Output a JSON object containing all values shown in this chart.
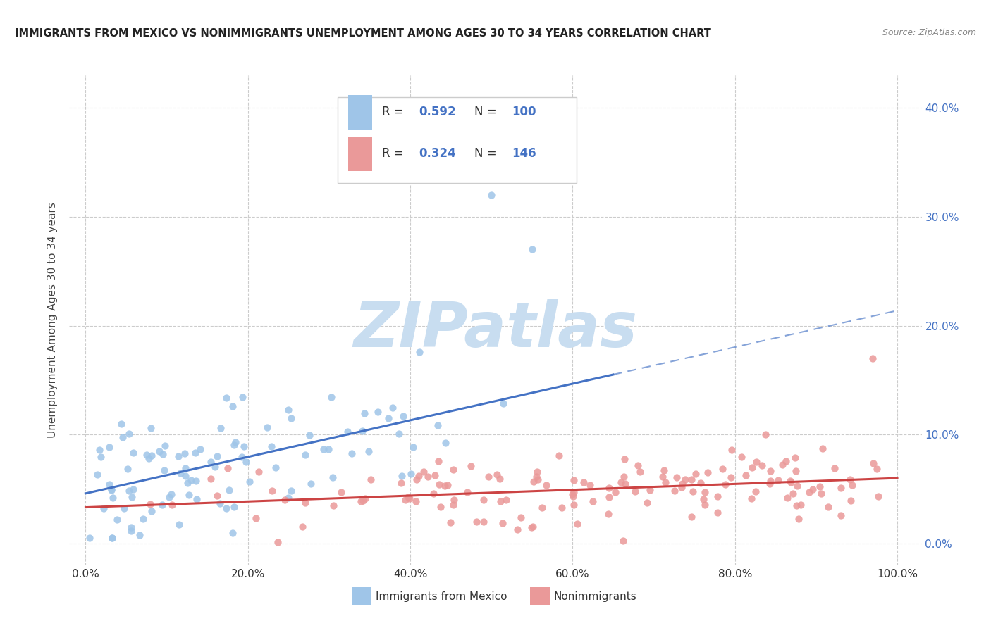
{
  "title": "IMMIGRANTS FROM MEXICO VS NONIMMIGRANTS UNEMPLOYMENT AMONG AGES 30 TO 34 YEARS CORRELATION CHART",
  "source": "Source: ZipAtlas.com",
  "xlabel_vals": [
    0,
    20,
    40,
    60,
    80,
    100
  ],
  "ylabel": "Unemployment Among Ages 30 to 34 years",
  "ylabel_vals": [
    0,
    10,
    20,
    30,
    40
  ],
  "blue_color": "#9fc5e8",
  "pink_color": "#ea9999",
  "trend_blue": "#4472c4",
  "trend_pink": "#cc4444",
  "legend_R1": "0.592",
  "legend_N1": "100",
  "legend_R2": "0.324",
  "legend_N2": "146",
  "legend_label_blue": "Immigrants from Mexico",
  "legend_label_pink": "Nonimmigrants",
  "watermark_text": "ZIPatlas",
  "watermark_color": "#c8ddf0",
  "grid_color": "#cccccc",
  "title_color": "#222222",
  "source_color": "#888888",
  "axis_label_color": "#4472c4",
  "text_color": "#222222"
}
